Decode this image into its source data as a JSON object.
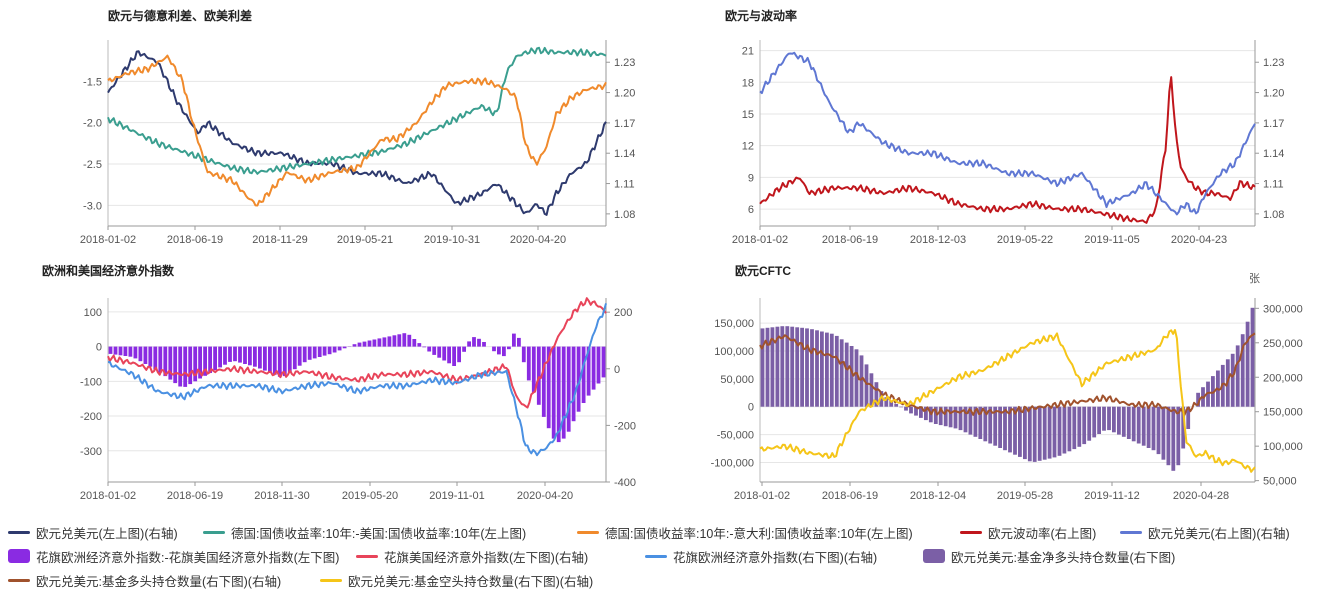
{
  "chart_data": [
    {
      "type": "line",
      "title": "欧元与德意利差、欧美利差",
      "x_ticks": [
        "2018-01-02",
        "2018-06-19",
        "2018-11-29",
        "2019-05-21",
        "2019-10-31",
        "2020-04-20"
      ],
      "y_left": {
        "range": [
          -3.25,
          -1.0
        ],
        "ticks": [
          "-1.5",
          "-2.0",
          "-2.5",
          "-3.0"
        ]
      },
      "y_right": {
        "range": [
          1.068,
          1.252
        ],
        "ticks": [
          "1.23",
          "1.20",
          "1.17",
          "1.14",
          "1.11",
          "1.08"
        ]
      },
      "series": [
        {
          "name": "欧元兑美元(左上图)(右轴)",
          "axis": "right",
          "color": "#2e3a6e",
          "x": [
            0,
            0.03,
            0.06,
            0.1,
            0.14,
            0.18,
            0.2,
            0.25,
            0.3,
            0.35,
            0.4,
            0.45,
            0.5,
            0.55,
            0.6,
            0.65,
            0.7,
            0.75,
            0.78,
            0.8,
            0.82,
            0.84,
            0.86,
            0.88,
            0.9,
            0.93,
            0.96,
            1.0
          ],
          "y": [
            1.2,
            1.22,
            1.24,
            1.23,
            1.19,
            1.16,
            1.17,
            1.15,
            1.14,
            1.14,
            1.13,
            1.13,
            1.12,
            1.12,
            1.11,
            1.12,
            1.09,
            1.1,
            1.11,
            1.1,
            1.09,
            1.08,
            1.09,
            1.08,
            1.1,
            1.12,
            1.13,
            1.17
          ]
        },
        {
          "name": "德国:国债收益率:10年:-美国:国债收益率:10年(左上图)",
          "axis": "left",
          "color": "#3a9e8f",
          "x": [
            0,
            0.05,
            0.1,
            0.15,
            0.2,
            0.25,
            0.3,
            0.35,
            0.4,
            0.45,
            0.5,
            0.55,
            0.6,
            0.65,
            0.7,
            0.75,
            0.78,
            0.8,
            0.82,
            0.84,
            0.86,
            0.9,
            0.95,
            1.0
          ],
          "y": [
            -1.95,
            -2.1,
            -2.25,
            -2.35,
            -2.45,
            -2.55,
            -2.6,
            -2.55,
            -2.5,
            -2.45,
            -2.4,
            -2.35,
            -2.25,
            -2.1,
            -1.95,
            -1.8,
            -1.9,
            -1.4,
            -1.2,
            -1.15,
            -1.12,
            -1.15,
            -1.15,
            -1.18
          ]
        },
        {
          "name": "德国:国债收益率:10年:-意大利:国债收益率:10年(左上图)",
          "axis": "left",
          "color": "#f08a2c",
          "x": [
            0,
            0.04,
            0.08,
            0.12,
            0.15,
            0.17,
            0.2,
            0.25,
            0.28,
            0.3,
            0.33,
            0.36,
            0.4,
            0.45,
            0.5,
            0.55,
            0.58,
            0.62,
            0.65,
            0.68,
            0.72,
            0.76,
            0.8,
            0.82,
            0.84,
            0.86,
            0.88,
            0.9,
            0.93,
            0.96,
            1.0
          ],
          "y": [
            -1.5,
            -1.4,
            -1.35,
            -1.2,
            -1.5,
            -2.0,
            -2.6,
            -2.7,
            -2.9,
            -3.0,
            -2.8,
            -2.6,
            -2.7,
            -2.6,
            -2.55,
            -2.2,
            -2.2,
            -2.0,
            -1.75,
            -1.55,
            -1.5,
            -1.5,
            -1.6,
            -1.7,
            -2.3,
            -2.5,
            -2.3,
            -1.9,
            -1.7,
            -1.6,
            -1.55
          ]
        }
      ]
    },
    {
      "type": "line",
      "title": "欧元与波动率",
      "x_ticks": [
        "2018-01-02",
        "2018-06-19",
        "2018-12-03",
        "2019-05-22",
        "2019-11-05",
        "2020-04-23"
      ],
      "y_left": {
        "range": [
          4.4,
          22
        ],
        "ticks": [
          "21",
          "18",
          "15",
          "12",
          "9",
          "6"
        ]
      },
      "y_right": {
        "range": [
          1.068,
          1.252
        ],
        "ticks": [
          "1.23",
          "1.20",
          "1.17",
          "1.14",
          "1.11",
          "1.08"
        ]
      },
      "series": [
        {
          "name": "欧元波动率(右上图)",
          "axis": "left",
          "color": "#c0161c",
          "x": [
            0,
            0.04,
            0.08,
            0.1,
            0.15,
            0.2,
            0.25,
            0.3,
            0.35,
            0.4,
            0.45,
            0.5,
            0.55,
            0.6,
            0.65,
            0.7,
            0.75,
            0.78,
            0.8,
            0.82,
            0.83,
            0.84,
            0.85,
            0.86,
            0.88,
            0.9,
            0.92,
            0.95,
            0.97,
            1.0
          ],
          "y": [
            6.5,
            8.0,
            9.0,
            7.5,
            8.0,
            8.0,
            7.5,
            8.0,
            7.5,
            6.5,
            6.0,
            6.0,
            6.5,
            6.0,
            6.0,
            5.5,
            5.0,
            4.8,
            6.0,
            12.0,
            19.0,
            13.0,
            10.0,
            9.0,
            8.0,
            7.5,
            7.5,
            7.0,
            8.5,
            8.0
          ]
        },
        {
          "name": "欧元兑美元(右上图)(右轴)",
          "axis": "right",
          "color": "#5f77d3",
          "x": [
            0,
            0.03,
            0.06,
            0.1,
            0.14,
            0.18,
            0.2,
            0.25,
            0.3,
            0.35,
            0.4,
            0.45,
            0.5,
            0.55,
            0.6,
            0.65,
            0.7,
            0.75,
            0.78,
            0.8,
            0.82,
            0.84,
            0.86,
            0.88,
            0.9,
            0.93,
            0.96,
            1.0
          ],
          "y": [
            1.2,
            1.22,
            1.24,
            1.23,
            1.19,
            1.16,
            1.17,
            1.15,
            1.14,
            1.14,
            1.13,
            1.13,
            1.12,
            1.12,
            1.11,
            1.12,
            1.09,
            1.1,
            1.11,
            1.1,
            1.09,
            1.08,
            1.09,
            1.08,
            1.1,
            1.12,
            1.13,
            1.17
          ]
        }
      ]
    },
    {
      "type": "bar",
      "title": "欧洲和美国经济意外指数",
      "x_ticks": [
        "2018-01-02",
        "2018-06-19",
        "2018-11-30",
        "2019-05-20",
        "2019-11-01",
        "2020-04-20"
      ],
      "y_left": {
        "range": [
          -390,
          140
        ],
        "ticks": [
          "100",
          "0",
          "-100",
          "-200",
          "-300"
        ]
      },
      "y_right": {
        "range": [
          -400,
          250
        ],
        "ticks": [
          "200",
          "0",
          "-200",
          "-400"
        ]
      },
      "series": [
        {
          "name": "花旗欧洲经济意外指数:-花旗美国经济意外指数(左下图)",
          "axis": "left",
          "color": "#8a2be2",
          "kind": "bar",
          "x": [
            0,
            0.05,
            0.1,
            0.15,
            0.2,
            0.25,
            0.3,
            0.35,
            0.4,
            0.45,
            0.5,
            0.55,
            0.6,
            0.65,
            0.7,
            0.73,
            0.75,
            0.78,
            0.8,
            0.82,
            0.84,
            0.86,
            0.88,
            0.9,
            0.92,
            0.94,
            0.96,
            1.0
          ],
          "y": [
            -20,
            -30,
            -70,
            -120,
            -80,
            -40,
            -60,
            -90,
            -40,
            -20,
            10,
            25,
            40,
            -20,
            -60,
            30,
            20,
            -20,
            -30,
            60,
            -80,
            -150,
            -220,
            -280,
            -260,
            -200,
            -150,
            -80
          ]
        },
        {
          "name": "花旗美国经济意外指数(左下图)(右轴)",
          "axis": "right",
          "color": "#e8445a",
          "x": [
            0,
            0.05,
            0.1,
            0.15,
            0.2,
            0.25,
            0.3,
            0.35,
            0.4,
            0.45,
            0.5,
            0.55,
            0.6,
            0.65,
            0.7,
            0.75,
            0.8,
            0.82,
            0.84,
            0.86,
            0.88,
            0.9,
            0.92,
            0.94,
            0.96,
            0.98,
            1.0
          ],
          "y": [
            40,
            20,
            -10,
            -20,
            -10,
            0,
            -10,
            -20,
            -10,
            -30,
            -40,
            -20,
            -20,
            -10,
            -40,
            -20,
            10,
            -100,
            -140,
            -60,
            20,
            100,
            160,
            210,
            240,
            230,
            200
          ]
        },
        {
          "name": "花旗欧洲经济意外指数(右下图)(右轴)",
          "axis": "right",
          "color": "#4a90e2",
          "x": [
            0,
            0.05,
            0.1,
            0.15,
            0.2,
            0.25,
            0.3,
            0.35,
            0.4,
            0.45,
            0.5,
            0.55,
            0.6,
            0.65,
            0.7,
            0.75,
            0.8,
            0.82,
            0.84,
            0.86,
            0.88,
            0.9,
            0.92,
            0.94,
            0.96,
            0.98,
            1.0
          ],
          "y": [
            20,
            -20,
            -80,
            -100,
            -60,
            -60,
            -60,
            -80,
            -60,
            -50,
            -80,
            -60,
            -60,
            -40,
            -50,
            -20,
            -10,
            -140,
            -280,
            -300,
            -280,
            -240,
            -160,
            -80,
            40,
            150,
            220
          ]
        }
      ]
    },
    {
      "type": "bar",
      "title": "欧元CFTC",
      "x_ticks": [
        "2018-01-02",
        "2018-06-19",
        "2018-12-04",
        "2019-05-28",
        "2019-11-12",
        "2020-04-28"
      ],
      "y_left": {
        "range": [
          -135000,
          195000
        ],
        "ticks": [
          "150,000",
          "100,000",
          "50,000",
          "0",
          "-50,000",
          "-100,000"
        ]
      },
      "y_right": {
        "range": [
          48000,
          315000
        ],
        "ticks": [
          "300,000",
          "250,000",
          "200,000",
          "150,000",
          "100,000",
          "50,000"
        ]
      },
      "right_unit": "张",
      "series": [
        {
          "name": "欧元兑美元:基金净多头持仓数量(右下图)",
          "axis": "left",
          "color": "#7b5fa6",
          "kind": "bar",
          "x": [
            0,
            0.05,
            0.1,
            0.15,
            0.2,
            0.25,
            0.3,
            0.35,
            0.4,
            0.45,
            0.5,
            0.55,
            0.6,
            0.65,
            0.7,
            0.75,
            0.8,
            0.82,
            0.84,
            0.86,
            0.88,
            0.9,
            0.92,
            0.94,
            0.96,
            0.98,
            1.0
          ],
          "y": [
            140000,
            145000,
            140000,
            130000,
            100000,
            20000,
            -10000,
            -30000,
            -40000,
            -60000,
            -80000,
            -100000,
            -90000,
            -70000,
            -40000,
            -60000,
            -80000,
            -100000,
            -120000,
            -60000,
            20000,
            40000,
            60000,
            80000,
            100000,
            140000,
            190000
          ]
        },
        {
          "name": "欧元兑美元:基金多头持仓数量(右下图)(右轴)",
          "axis": "right",
          "color": "#a0522d",
          "x": [
            0,
            0.05,
            0.1,
            0.15,
            0.2,
            0.25,
            0.3,
            0.35,
            0.4,
            0.45,
            0.5,
            0.55,
            0.6,
            0.65,
            0.7,
            0.75,
            0.8,
            0.82,
            0.84,
            0.86,
            0.88,
            0.9,
            0.92,
            0.94,
            0.96,
            0.98,
            1.0
          ],
          "y": [
            245000,
            260000,
            240000,
            230000,
            200000,
            175000,
            160000,
            150000,
            150000,
            150000,
            150000,
            155000,
            160000,
            165000,
            170000,
            160000,
            160000,
            155000,
            150000,
            150000,
            160000,
            175000,
            180000,
            190000,
            210000,
            250000,
            265000
          ]
        },
        {
          "name": "欧元兑美元:基金空头持仓数量(右下图)(右轴)",
          "axis": "right",
          "color": "#f5c518",
          "x": [
            0,
            0.05,
            0.1,
            0.15,
            0.2,
            0.25,
            0.3,
            0.35,
            0.4,
            0.45,
            0.5,
            0.55,
            0.6,
            0.65,
            0.7,
            0.75,
            0.8,
            0.82,
            0.84,
            0.86,
            0.88,
            0.9,
            0.92,
            0.94,
            0.96,
            0.98,
            1.0
          ],
          "y": [
            95000,
            100000,
            90000,
            85000,
            150000,
            170000,
            160000,
            180000,
            200000,
            210000,
            230000,
            250000,
            260000,
            190000,
            220000,
            230000,
            240000,
            260000,
            270000,
            110000,
            85000,
            90000,
            80000,
            75000,
            80000,
            70000,
            65000
          ]
        }
      ]
    }
  ],
  "legend": {
    "row1": [
      {
        "label": "欧元兑美元(左上图)(右轴)",
        "color": "#2e3a6e",
        "kind": "line"
      },
      {
        "label": "德国:国债收益率:10年:-美国:国债收益率:10年(左上图)",
        "color": "#3a9e8f",
        "kind": "line"
      },
      {
        "label": "德国:国债收益率:10年:-意大利:国债收益率:10年(左上图)",
        "color": "#f08a2c",
        "kind": "line"
      },
      {
        "label": "欧元波动率(右上图)",
        "color": "#c0161c",
        "kind": "line"
      },
      {
        "label": "欧元兑美元(右上图)(右轴)",
        "color": "#5f77d3",
        "kind": "line"
      }
    ],
    "row2": [
      {
        "label": "花旗欧洲经济意外指数:-花旗美国经济意外指数(左下图)",
        "color": "#8a2be2",
        "kind": "bar"
      },
      {
        "label": "花旗美国经济意外指数(左下图)(右轴)",
        "color": "#e8445a",
        "kind": "line"
      },
      {
        "label": "花旗欧洲经济意外指数(右下图)(右轴)",
        "color": "#4a90e2",
        "kind": "line"
      },
      {
        "label": "欧元兑美元:基金净多头持仓数量(右下图)",
        "color": "#7b5fa6",
        "kind": "bar"
      }
    ],
    "row3": [
      {
        "label": "欧元兑美元:基金多头持仓数量(右下图)(右轴)",
        "color": "#a0522d",
        "kind": "line"
      },
      {
        "label": "欧元兑美元:基金空头持仓数量(右下图)(右轴)",
        "color": "#f5c518",
        "kind": "line"
      }
    ]
  }
}
